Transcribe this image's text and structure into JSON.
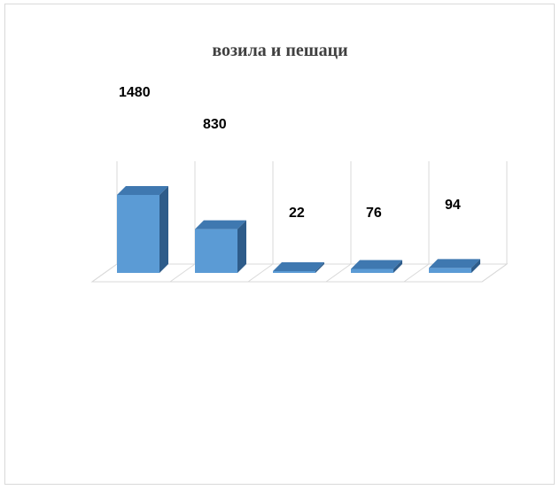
{
  "chart_data": {
    "type": "bar",
    "title": "возила и пешаци",
    "categories": [
      "",
      "",
      "",
      "",
      ""
    ],
    "values": [
      1480,
      830,
      22,
      76,
      94
    ],
    "data_labels": [
      "1480",
      "830",
      "22",
      "76",
      "94"
    ],
    "ylim": [
      0,
      1480
    ],
    "grid": true,
    "legend": "none",
    "three_d": true,
    "colors": {
      "bar_front": "#5b9bd5",
      "bar_top": "#3f78b0",
      "bar_side": "#2e5c8a",
      "grid": "#d9d9d9",
      "title": "#404040",
      "category_label": "#1a1a1a"
    }
  }
}
